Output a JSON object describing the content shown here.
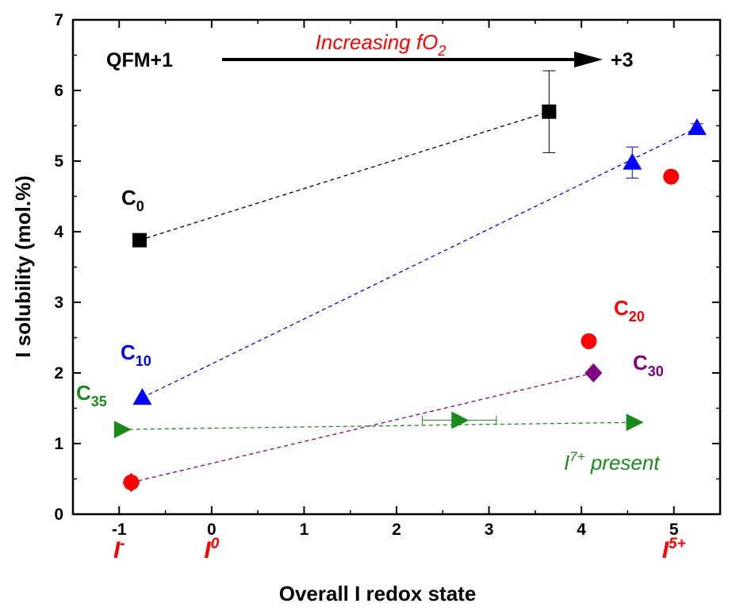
{
  "chart_data": {
    "type": "scatter",
    "xlabel": "Overall I redox state",
    "ylabel": "I solubility (mol.%)",
    "xlim": [
      -1.5,
      5.5
    ],
    "ylim": [
      0,
      7
    ],
    "x_ticks": [
      -1,
      0,
      1,
      2,
      3,
      4,
      5
    ],
    "y_ticks": [
      0,
      1,
      2,
      3,
      4,
      5,
      6,
      7
    ],
    "grid": false,
    "series": [
      {
        "name": "C0",
        "label_main": "C",
        "label_sub": "0",
        "color": "#000000",
        "marker": "square",
        "points": [
          {
            "x": -0.78,
            "y": 3.88
          },
          {
            "x": 3.65,
            "y": 5.7,
            "yerr": 0.58
          }
        ],
        "fit": [
          [
            -0.78,
            3.88
          ],
          [
            3.65,
            5.7
          ]
        ]
      },
      {
        "name": "C10",
        "label_main": "C",
        "label_sub": "10",
        "color": "#0000ff",
        "marker": "triangle-up",
        "points": [
          {
            "x": -0.75,
            "y": 1.65
          },
          {
            "x": 4.55,
            "y": 4.98,
            "yerr": 0.22
          },
          {
            "x": 5.25,
            "y": 5.47,
            "yerr": 0.06
          }
        ],
        "fit": [
          [
            -0.75,
            1.65
          ],
          [
            5.25,
            5.47
          ]
        ]
      },
      {
        "name": "C20",
        "label_main": "C",
        "label_sub": "20",
        "color": "#ff0000",
        "marker": "circle",
        "points": [
          {
            "x": -0.87,
            "y": 0.45
          },
          {
            "x": 4.08,
            "y": 2.45
          },
          {
            "x": 4.97,
            "y": 4.78
          }
        ]
      },
      {
        "name": "C30",
        "label_main": "C",
        "label_sub": "30",
        "color": "#800080",
        "marker": "diamond",
        "points": [
          {
            "x": -0.87,
            "y": 0.45
          },
          {
            "x": 4.13,
            "y": 2.0
          }
        ],
        "fit": [
          [
            -0.87,
            0.45
          ],
          [
            4.13,
            2.0
          ]
        ]
      },
      {
        "name": "C35",
        "label_main": "C",
        "label_sub": "35",
        "color": "#1a8a1a",
        "marker": "triangle-right",
        "points": [
          {
            "x": -0.97,
            "y": 1.2
          },
          {
            "x": 2.68,
            "y": 1.33,
            "xerr": 0.4
          },
          {
            "x": 4.57,
            "y": 1.3
          }
        ],
        "fit": [
          [
            -0.97,
            1.2
          ],
          [
            4.57,
            1.3
          ]
        ]
      }
    ],
    "annotations": {
      "fo2_main": "Increasing fO",
      "fo2_sub": "2",
      "start_label": "QFM+1",
      "end_label": "+3",
      "i7_main": "I",
      "i7_sup": "7+",
      "i7_rest": " present",
      "redox_labels": [
        {
          "main": "I",
          "sup": "-",
          "x": -1
        },
        {
          "main": "I",
          "sup": "0",
          "x": 0
        },
        {
          "main": "I",
          "sup": "5+",
          "x": 5
        }
      ]
    },
    "colors": {
      "annotation_red": "#ff0000",
      "annotation_green": "#1a8a1a",
      "axis": "#000000"
    }
  }
}
